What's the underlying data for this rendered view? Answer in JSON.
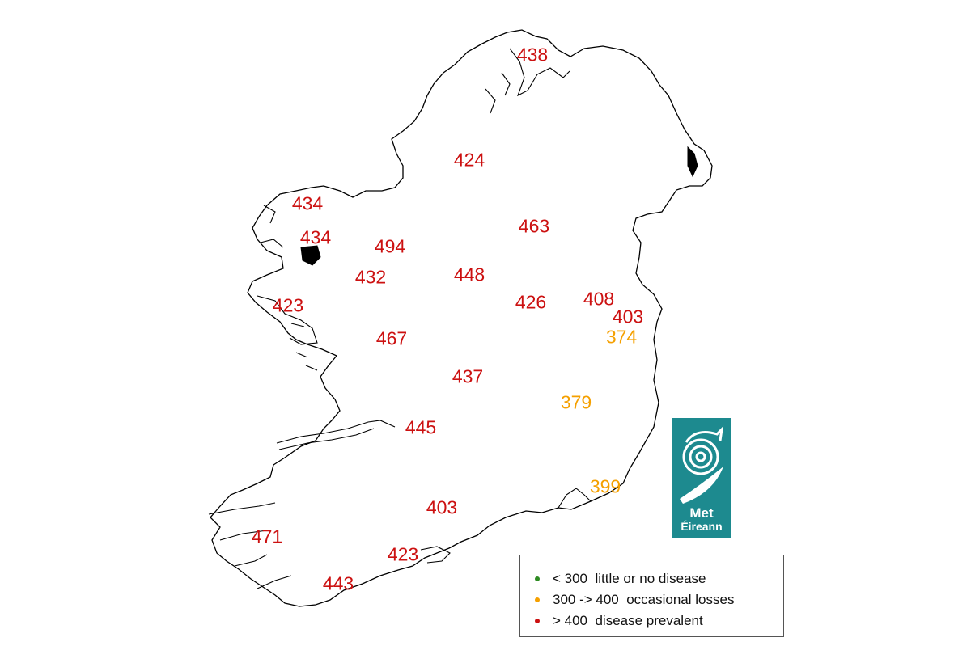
{
  "colors": {
    "little_or_none": "#2e8b22",
    "occasional": "#f5a000",
    "prevalent": "#cc1111",
    "logo_bg": "#1d8a8f",
    "coast": "#000000"
  },
  "stations": [
    {
      "value": "438",
      "class": "prevalent"
    },
    {
      "value": "424",
      "class": "prevalent"
    },
    {
      "value": "434",
      "class": "prevalent"
    },
    {
      "value": "463",
      "class": "prevalent"
    },
    {
      "value": "434",
      "class": "prevalent"
    },
    {
      "value": "494",
      "class": "prevalent"
    },
    {
      "value": "432",
      "class": "prevalent"
    },
    {
      "value": "448",
      "class": "prevalent"
    },
    {
      "value": "423",
      "class": "prevalent"
    },
    {
      "value": "426",
      "class": "prevalent"
    },
    {
      "value": "408",
      "class": "prevalent"
    },
    {
      "value": "403",
      "class": "prevalent"
    },
    {
      "value": "374",
      "class": "occasional"
    },
    {
      "value": "467",
      "class": "prevalent"
    },
    {
      "value": "437",
      "class": "prevalent"
    },
    {
      "value": "379",
      "class": "occasional"
    },
    {
      "value": "445",
      "class": "prevalent"
    },
    {
      "value": "399",
      "class": "occasional"
    },
    {
      "value": "403",
      "class": "prevalent"
    },
    {
      "value": "471",
      "class": "prevalent"
    },
    {
      "value": "423",
      "class": "prevalent"
    },
    {
      "value": "443",
      "class": "prevalent"
    }
  ],
  "legend": {
    "items": [
      {
        "label": "< 300  little or no disease",
        "class": "little_or_none"
      },
      {
        "label": "300 -> 400  occasional losses",
        "class": "occasional"
      },
      {
        "label": "> 400  disease prevalent",
        "class": "prevalent"
      }
    ]
  },
  "logo": {
    "line1": "Met",
    "line2": "Éireann"
  }
}
